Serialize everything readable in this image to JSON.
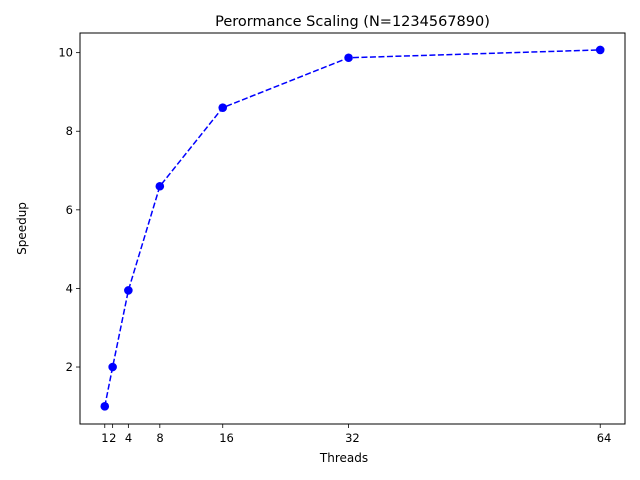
{
  "chart_data": {
    "type": "line",
    "title": "Perormance Scaling (N=1234567890)",
    "xlabel": "Threads",
    "ylabel": "Speedup",
    "x": [
      1,
      2,
      4,
      8,
      16,
      32,
      64
    ],
    "x_tick_labels": [
      "1",
      "2",
      "4",
      "8",
      "16",
      "32",
      "64"
    ],
    "series": [
      {
        "values": [
          1.0,
          2.0,
          3.95,
          6.6,
          8.6,
          9.87,
          10.07
        ],
        "color": "#0000ff",
        "line_style": "dashed",
        "marker": "circle"
      }
    ],
    "xlim": [
      -2.15,
      67.15
    ],
    "ylim": [
      0.55,
      10.5
    ],
    "y_ticks": [
      2,
      4,
      6,
      8,
      10
    ],
    "y_tick_labels": [
      "2",
      "4",
      "6",
      "8",
      "10"
    ],
    "grid": false,
    "legend": "none"
  }
}
